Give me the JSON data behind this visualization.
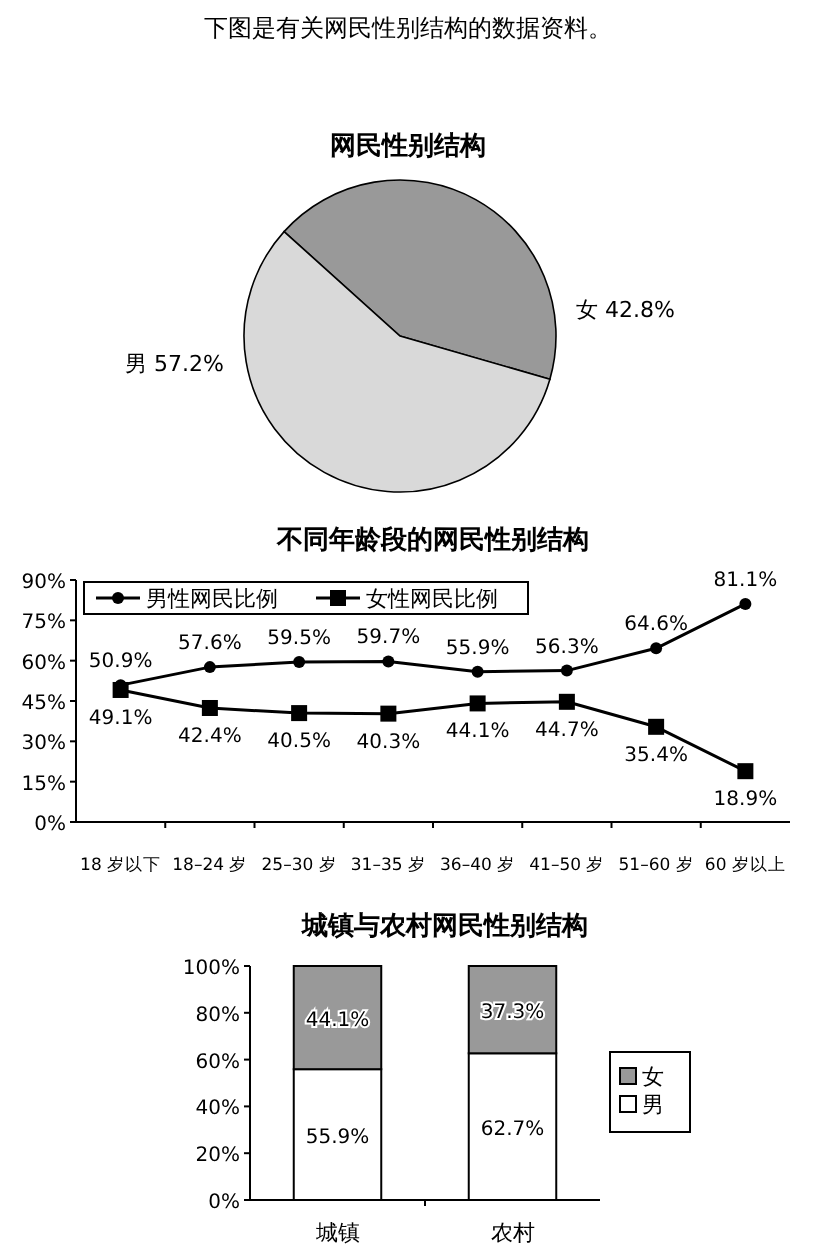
{
  "chart_data": [
    {
      "type": "pie",
      "title": "网民性别结构",
      "annotations": [
        "下图是有关网民性别结构的数据资料。"
      ],
      "categories": [
        "女",
        "男"
      ],
      "values": [
        42.8,
        57.2
      ],
      "colors": [
        "#999999",
        "#d9d9d9"
      ],
      "value_labels": [
        "42.8%",
        "57.2%"
      ]
    },
    {
      "type": "line",
      "title": "不同年龄段的网民性别结构",
      "categories": [
        "18 岁以下",
        "18–24 岁",
        "25–30 岁",
        "31–35 岁",
        "36–40 岁",
        "41–50 岁",
        "51–60 岁",
        "60 岁以上"
      ],
      "series": [
        {
          "name": "男性网民比例",
          "color": "#000000",
          "marker": "circle",
          "values": [
            50.9,
            57.6,
            59.5,
            59.7,
            55.9,
            56.3,
            64.6,
            81.1
          ],
          "value_labels": [
            "50.9%",
            "57.6%",
            "59.5%",
            "59.7%",
            "55.9%",
            "56.3%",
            "64.6%",
            "81.1%"
          ]
        },
        {
          "name": "女性网民比例",
          "color": "#000000",
          "marker": "square",
          "values": [
            49.1,
            42.4,
            40.5,
            40.3,
            44.1,
            44.7,
            35.4,
            18.9
          ],
          "value_labels": [
            "49.1%",
            "42.4%",
            "40.5%",
            "40.3%",
            "44.1%",
            "44.7%",
            "35.4%",
            "18.9%"
          ]
        }
      ],
      "ylim": [
        0,
        90
      ],
      "yticks": [
        {
          "value": 0,
          "label": "0%"
        },
        {
          "value": 15,
          "label": "15%"
        },
        {
          "value": 30,
          "label": "30%"
        },
        {
          "value": 45,
          "label": "45%"
        },
        {
          "value": 60,
          "label": "60%"
        },
        {
          "value": 75,
          "label": "75%"
        },
        {
          "value": 90,
          "label": "90%"
        }
      ],
      "legend": "top left",
      "line_style": "solid"
    },
    {
      "type": "bar",
      "title": "城镇与农村网民性别结构",
      "categories": [
        "城镇",
        "农村"
      ],
      "stacked": true,
      "series": [
        {
          "name": "男",
          "color": "#ffffff",
          "values": [
            55.9,
            62.7
          ],
          "value_labels": [
            "55.9%",
            "62.7%"
          ]
        },
        {
          "name": "女",
          "color": "#999999",
          "values": [
            44.1,
            37.3
          ],
          "value_labels": [
            "44.1%",
            "37.3%"
          ]
        }
      ],
      "ylim": [
        0,
        100
      ],
      "yticks": [
        {
          "value": 0,
          "label": "0%"
        },
        {
          "value": 20,
          "label": "20%"
        },
        {
          "value": 40,
          "label": "40%"
        },
        {
          "value": 60,
          "label": "60%"
        },
        {
          "value": 80,
          "label": "80%"
        },
        {
          "value": 100,
          "label": "100%"
        }
      ],
      "legend": "right"
    }
  ]
}
